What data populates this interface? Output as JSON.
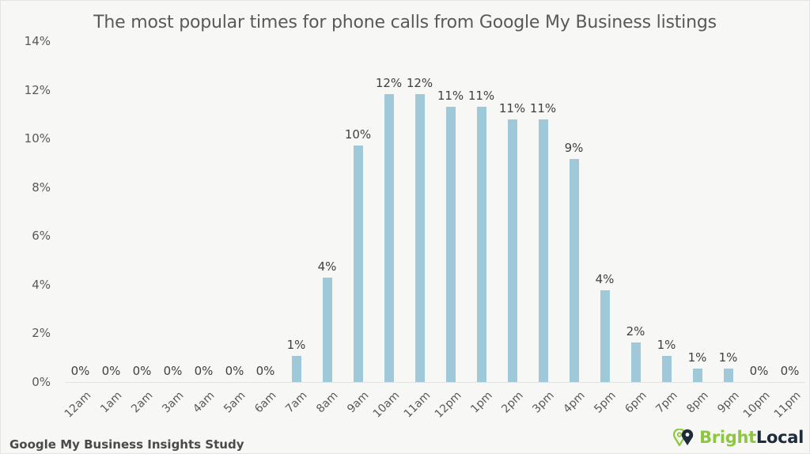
{
  "title": "The most popular times for phone calls from Google My Business listings",
  "footer": {
    "study": "Google My Business Insights Study",
    "logo_bright": "Bright",
    "logo_local": "Local",
    "logo_icon": "map-pin-icon"
  },
  "colors": {
    "bar": "#9fc8d8",
    "background": "#f7f7f5",
    "brand_green": "#8dc63f",
    "brand_navy": "#1d2b3c"
  },
  "y_axis": {
    "ticks": [
      "0%",
      "2%",
      "4%",
      "6%",
      "8%",
      "10%",
      "12%",
      "14%"
    ]
  },
  "chart_data": {
    "type": "bar",
    "title": "The most popular times for phone calls from Google My Business listings",
    "xlabel": "",
    "ylabel": "",
    "ylim": [
      0,
      14
    ],
    "y_unit": "%",
    "grid": false,
    "legend": null,
    "categories": [
      "12am",
      "1am",
      "2am",
      "3am",
      "4am",
      "5am",
      "6am",
      "7am",
      "8am",
      "9am",
      "10am",
      "11am",
      "12pm",
      "1pm",
      "2pm",
      "3pm",
      "4pm",
      "5pm",
      "6pm",
      "7pm",
      "8pm",
      "9pm",
      "10pm",
      "11pm"
    ],
    "values": [
      0,
      0,
      0,
      0,
      0,
      0,
      0,
      1.07,
      4.3,
      9.7,
      11.83,
      11.83,
      11.3,
      11.3,
      10.77,
      10.77,
      9.15,
      3.78,
      1.62,
      1.07,
      0.55,
      0.55,
      0,
      0
    ],
    "data_labels": [
      "0%",
      "0%",
      "0%",
      "0%",
      "0%",
      "0%",
      "0%",
      "1%",
      "4%",
      "10%",
      "12%",
      "12%",
      "11%",
      "11%",
      "11%",
      "11%",
      "9%",
      "4%",
      "2%",
      "1%",
      "1%",
      "1%",
      "0%",
      "0%"
    ]
  }
}
